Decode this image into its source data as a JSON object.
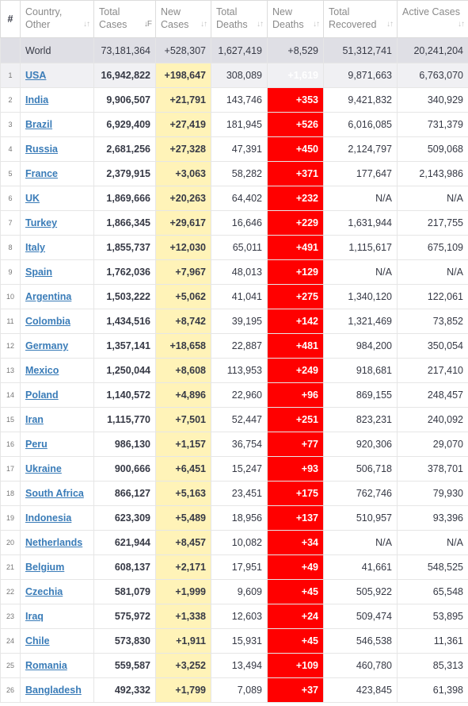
{
  "header": {
    "index": "#",
    "country": "Country, Other",
    "total_cases": "Total Cases",
    "new_cases": "New Cases",
    "total_deaths": "Total Deaths",
    "new_deaths": "New Deaths",
    "total_recovered": "Total Recovered",
    "active_cases": "Active Cases"
  },
  "colors": {
    "new_cases_bg": "#fff3b8",
    "new_deaths_bg": "#ff0000",
    "link": "#3a7cb8",
    "world_bg": "#dfdfe5"
  },
  "world": {
    "country": "World",
    "total_cases": "73,181,364",
    "new_cases": "+528,307",
    "total_deaths": "1,627,419",
    "new_deaths": "+8,529",
    "total_recovered": "51,312,741",
    "active_cases": "20,241,204"
  },
  "rows": [
    {
      "n": "1",
      "country": "USA",
      "total_cases": "16,942,822",
      "new_cases": "+198,647",
      "total_deaths": "308,089",
      "new_deaths": "+1,619",
      "total_recovered": "9,871,663",
      "active_cases": "6,763,070"
    },
    {
      "n": "2",
      "country": "India",
      "total_cases": "9,906,507",
      "new_cases": "+21,791",
      "total_deaths": "143,746",
      "new_deaths": "+353",
      "total_recovered": "9,421,832",
      "active_cases": "340,929"
    },
    {
      "n": "3",
      "country": "Brazil",
      "total_cases": "6,929,409",
      "new_cases": "+27,419",
      "total_deaths": "181,945",
      "new_deaths": "+526",
      "total_recovered": "6,016,085",
      "active_cases": "731,379"
    },
    {
      "n": "4",
      "country": "Russia",
      "total_cases": "2,681,256",
      "new_cases": "+27,328",
      "total_deaths": "47,391",
      "new_deaths": "+450",
      "total_recovered": "2,124,797",
      "active_cases": "509,068"
    },
    {
      "n": "5",
      "country": "France",
      "total_cases": "2,379,915",
      "new_cases": "+3,063",
      "total_deaths": "58,282",
      "new_deaths": "+371",
      "total_recovered": "177,647",
      "active_cases": "2,143,986"
    },
    {
      "n": "6",
      "country": "UK",
      "total_cases": "1,869,666",
      "new_cases": "+20,263",
      "total_deaths": "64,402",
      "new_deaths": "+232",
      "total_recovered": "N/A",
      "active_cases": "N/A"
    },
    {
      "n": "7",
      "country": "Turkey",
      "total_cases": "1,866,345",
      "new_cases": "+29,617",
      "total_deaths": "16,646",
      "new_deaths": "+229",
      "total_recovered": "1,631,944",
      "active_cases": "217,755"
    },
    {
      "n": "8",
      "country": "Italy",
      "total_cases": "1,855,737",
      "new_cases": "+12,030",
      "total_deaths": "65,011",
      "new_deaths": "+491",
      "total_recovered": "1,115,617",
      "active_cases": "675,109"
    },
    {
      "n": "9",
      "country": "Spain",
      "total_cases": "1,762,036",
      "new_cases": "+7,967",
      "total_deaths": "48,013",
      "new_deaths": "+129",
      "total_recovered": "N/A",
      "active_cases": "N/A"
    },
    {
      "n": "10",
      "country": "Argentina",
      "total_cases": "1,503,222",
      "new_cases": "+5,062",
      "total_deaths": "41,041",
      "new_deaths": "+275",
      "total_recovered": "1,340,120",
      "active_cases": "122,061"
    },
    {
      "n": "11",
      "country": "Colombia",
      "total_cases": "1,434,516",
      "new_cases": "+8,742",
      "total_deaths": "39,195",
      "new_deaths": "+142",
      "total_recovered": "1,321,469",
      "active_cases": "73,852"
    },
    {
      "n": "12",
      "country": "Germany",
      "total_cases": "1,357,141",
      "new_cases": "+18,658",
      "total_deaths": "22,887",
      "new_deaths": "+481",
      "total_recovered": "984,200",
      "active_cases": "350,054"
    },
    {
      "n": "13",
      "country": "Mexico",
      "total_cases": "1,250,044",
      "new_cases": "+8,608",
      "total_deaths": "113,953",
      "new_deaths": "+249",
      "total_recovered": "918,681",
      "active_cases": "217,410"
    },
    {
      "n": "14",
      "country": "Poland",
      "total_cases": "1,140,572",
      "new_cases": "+4,896",
      "total_deaths": "22,960",
      "new_deaths": "+96",
      "total_recovered": "869,155",
      "active_cases": "248,457"
    },
    {
      "n": "15",
      "country": "Iran",
      "total_cases": "1,115,770",
      "new_cases": "+7,501",
      "total_deaths": "52,447",
      "new_deaths": "+251",
      "total_recovered": "823,231",
      "active_cases": "240,092"
    },
    {
      "n": "16",
      "country": "Peru",
      "total_cases": "986,130",
      "new_cases": "+1,157",
      "total_deaths": "36,754",
      "new_deaths": "+77",
      "total_recovered": "920,306",
      "active_cases": "29,070"
    },
    {
      "n": "17",
      "country": "Ukraine",
      "total_cases": "900,666",
      "new_cases": "+6,451",
      "total_deaths": "15,247",
      "new_deaths": "+93",
      "total_recovered": "506,718",
      "active_cases": "378,701"
    },
    {
      "n": "18",
      "country": "South Africa",
      "total_cases": "866,127",
      "new_cases": "+5,163",
      "total_deaths": "23,451",
      "new_deaths": "+175",
      "total_recovered": "762,746",
      "active_cases": "79,930"
    },
    {
      "n": "19",
      "country": "Indonesia",
      "total_cases": "623,309",
      "new_cases": "+5,489",
      "total_deaths": "18,956",
      "new_deaths": "+137",
      "total_recovered": "510,957",
      "active_cases": "93,396"
    },
    {
      "n": "20",
      "country": "Netherlands",
      "total_cases": "621,944",
      "new_cases": "+8,457",
      "total_deaths": "10,082",
      "new_deaths": "+34",
      "total_recovered": "N/A",
      "active_cases": "N/A"
    },
    {
      "n": "21",
      "country": "Belgium",
      "total_cases": "608,137",
      "new_cases": "+2,171",
      "total_deaths": "17,951",
      "new_deaths": "+49",
      "total_recovered": "41,661",
      "active_cases": "548,525"
    },
    {
      "n": "22",
      "country": "Czechia",
      "total_cases": "581,079",
      "new_cases": "+1,999",
      "total_deaths": "9,609",
      "new_deaths": "+45",
      "total_recovered": "505,922",
      "active_cases": "65,548"
    },
    {
      "n": "23",
      "country": "Iraq",
      "total_cases": "575,972",
      "new_cases": "+1,338",
      "total_deaths": "12,603",
      "new_deaths": "+24",
      "total_recovered": "509,474",
      "active_cases": "53,895"
    },
    {
      "n": "24",
      "country": "Chile",
      "total_cases": "573,830",
      "new_cases": "+1,911",
      "total_deaths": "15,931",
      "new_deaths": "+45",
      "total_recovered": "546,538",
      "active_cases": "11,361"
    },
    {
      "n": "25",
      "country": "Romania",
      "total_cases": "559,587",
      "new_cases": "+3,252",
      "total_deaths": "13,494",
      "new_deaths": "+109",
      "total_recovered": "460,780",
      "active_cases": "85,313"
    },
    {
      "n": "26",
      "country": "Bangladesh",
      "total_cases": "492,332",
      "new_cases": "+1,799",
      "total_deaths": "7,089",
      "new_deaths": "+37",
      "total_recovered": "423,845",
      "active_cases": "61,398"
    }
  ]
}
